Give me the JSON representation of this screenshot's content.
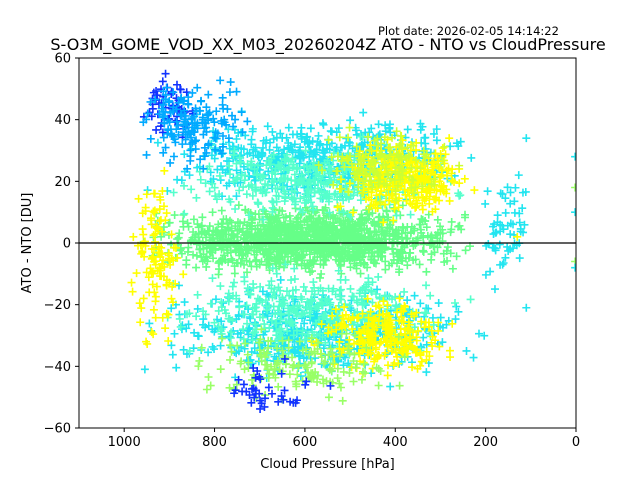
{
  "chart_data": {
    "type": "scatter",
    "title": "S-O3M_GOME_VOD_XX_M03_20260204Z ATO - NTO vs CloudPressure",
    "plot_date": "Plot date: 2026-02-05 14:14:22",
    "xlabel": "Cloud Pressure [hPa]",
    "ylabel": "ATO - NTO [DU]",
    "xlim": [
      1100,
      0
    ],
    "ylim": [
      -60,
      60
    ],
    "x_ticks": [
      1000,
      800,
      600,
      400,
      200,
      0
    ],
    "y_ticks": [
      60,
      40,
      20,
      0,
      -20,
      -40,
      -60
    ],
    "reference_line_y": 0,
    "marker": "plus",
    "grid": false,
    "legend": "none",
    "colors": {
      "core": "#66ff88",
      "cyan": "#22e5f0",
      "light_cyan": "#55ffcc",
      "yellow": "#ffff00",
      "yellow_green": "#ccff33",
      "light_green": "#99ff66",
      "blue": "#1133ff",
      "aqua_blue": "#00aaff"
    },
    "point_clusters": [
      {
        "name": "core-band",
        "color": "core",
        "x_range": [
          180,
          1000
        ],
        "y_range": [
          -12,
          14
        ],
        "count": 1400
      },
      {
        "name": "upper-cyan",
        "color": "cyan",
        "x_range": [
          150,
          1000
        ],
        "y_range": [
          10,
          45
        ],
        "count": 500
      },
      {
        "name": "lower-cyan",
        "color": "cyan",
        "x_range": [
          150,
          1000
        ],
        "y_range": [
          -48,
          -10
        ],
        "count": 520
      },
      {
        "name": "upper-light-cyan",
        "color": "light_cyan",
        "x_range": [
          200,
          980
        ],
        "y_range": [
          5,
          35
        ],
        "count": 350
      },
      {
        "name": "lower-light-cyan",
        "color": "light_cyan",
        "x_range": [
          200,
          980
        ],
        "y_range": [
          -40,
          -5
        ],
        "count": 350
      },
      {
        "name": "upper-yellow",
        "color": "yellow",
        "x_range": [
          200,
          560
        ],
        "y_range": [
          5,
          38
        ],
        "count": 300
      },
      {
        "name": "lower-yellow",
        "color": "yellow",
        "x_range": [
          230,
          620
        ],
        "y_range": [
          -45,
          -15
        ],
        "count": 260
      },
      {
        "name": "left-yellow",
        "color": "yellow",
        "x_range": [
          860,
          1000
        ],
        "y_range": [
          -38,
          28
        ],
        "count": 120
      },
      {
        "name": "upper-yellow-green",
        "color": "yellow_green",
        "x_range": [
          250,
          600
        ],
        "y_range": [
          10,
          40
        ],
        "count": 140
      },
      {
        "name": "lower-light-green",
        "color": "light_green",
        "x_range": [
          350,
          900
        ],
        "y_range": [
          -55,
          -25
        ],
        "count": 160
      },
      {
        "name": "upper-blue",
        "color": "blue",
        "x_range": [
          820,
          980
        ],
        "y_range": [
          30,
          59
        ],
        "count": 60
      },
      {
        "name": "lower-blue",
        "color": "blue",
        "x_range": [
          500,
          860
        ],
        "y_range": [
          -58,
          -35
        ],
        "count": 40
      },
      {
        "name": "upper-aqua-blue",
        "color": "aqua_blue",
        "x_range": [
          700,
          1000
        ],
        "y_range": [
          20,
          58
        ],
        "count": 160
      },
      {
        "name": "right-tail",
        "color": "cyan",
        "x_range": [
          80,
          230
        ],
        "y_range": [
          -22,
          34
        ],
        "count": 60
      }
    ],
    "outlier_points": [
      {
        "x": 2,
        "y": 28,
        "color": "cyan"
      },
      {
        "x": 2,
        "y": 18,
        "color": "light_green"
      },
      {
        "x": 2,
        "y": 10,
        "color": "cyan"
      },
      {
        "x": 2,
        "y": -6,
        "color": "light_green"
      },
      {
        "x": 2,
        "y": -8,
        "color": "cyan"
      },
      {
        "x": 110,
        "y": 34,
        "color": "cyan"
      },
      {
        "x": 110,
        "y": -21,
        "color": "cyan"
      },
      {
        "x": 130,
        "y": 2,
        "color": "yellow"
      }
    ]
  }
}
